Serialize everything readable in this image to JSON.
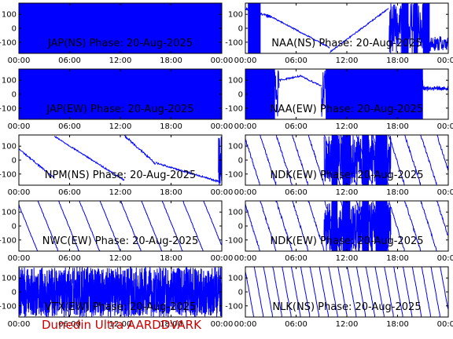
{
  "footer": {
    "text": "Dunedin Ultra AARDDVARK"
  },
  "colors": {
    "trace": "#0000ff",
    "footer": "#cc0000",
    "axes": "#000000"
  },
  "chart_data": [
    {
      "type": "line",
      "title": "JAP(NS) Phase: 20-Aug-2025",
      "station": "JAP",
      "component": "NS",
      "pattern": "dense",
      "xlim": [
        0,
        24
      ],
      "ylim": [
        -180,
        180
      ],
      "xticks": [
        "00:00",
        "06:00",
        "12:00",
        "18:00",
        "00:00"
      ],
      "yticks": [
        "100",
        "0",
        "-100"
      ],
      "description_series": []
    },
    {
      "type": "line",
      "title": "NAA(NS) Phase: 20-Aug-2025",
      "station": "NAA",
      "component": "NS",
      "pattern": "naa_ns",
      "xlim": [
        0,
        24
      ],
      "ylim": [
        -180,
        180
      ],
      "xticks": [
        "00:00",
        "06:00",
        "12:00",
        "18:00",
        "00:00"
      ],
      "yticks": [
        "100",
        "0",
        "-100"
      ],
      "description_series": []
    },
    {
      "type": "line",
      "title": "JAP(EW) Phase: 20-Aug-2025",
      "station": "JAP",
      "component": "EW",
      "pattern": "dense",
      "xlim": [
        0,
        24
      ],
      "ylim": [
        -180,
        180
      ],
      "xticks": [
        "00:00",
        "06:00",
        "12:00",
        "18:00",
        "00:00"
      ],
      "yticks": [
        "100",
        "0",
        "-100"
      ],
      "description_series": []
    },
    {
      "type": "line",
      "title": "NAA(EW) Phase: 20-Aug-2025",
      "station": "NAA",
      "component": "EW",
      "pattern": "naa_ew",
      "xlim": [
        0,
        24
      ],
      "ylim": [
        -180,
        180
      ],
      "xticks": [
        "00:00",
        "06:00",
        "12:00",
        "18:00",
        "00:00"
      ],
      "yticks": [
        "100",
        "0",
        "-100"
      ],
      "description_series": []
    },
    {
      "type": "line",
      "title": "NPM(NS) Phase: 20-Aug-2025",
      "station": "NPM",
      "component": "NS",
      "pattern": "npm",
      "xlim": [
        0,
        24
      ],
      "ylim": [
        -180,
        180
      ],
      "xticks": [
        "00:00",
        "06:00",
        "12:00",
        "18:00",
        "00:00"
      ],
      "yticks": [
        "100",
        "0",
        "-100"
      ],
      "description_series": []
    },
    {
      "type": "line",
      "title": "NDK(EW) Phase: 20-Aug-2025",
      "station": "NDK",
      "component": "EW",
      "pattern": "ndk",
      "xlim": [
        0,
        24
      ],
      "ylim": [
        -180,
        180
      ],
      "xticks": [
        "00:00",
        "06:00",
        "12:00",
        "18:00",
        "00:00"
      ],
      "yticks": [
        "100",
        "0",
        "-100"
      ],
      "description_series": []
    },
    {
      "type": "line",
      "title": "NWC(EW) Phase: 20-Aug-2025",
      "station": "NWC",
      "component": "EW",
      "pattern": "nwc",
      "xlim": [
        0,
        24
      ],
      "ylim": [
        -180,
        180
      ],
      "xticks": [
        "00:00",
        "06:00",
        "12:00",
        "18:00",
        "00:00"
      ],
      "yticks": [
        "100",
        "0",
        "-100"
      ],
      "description_series": []
    },
    {
      "type": "line",
      "title": "NDK(EW) Phase: 20-Aug-2025",
      "station": "NDK",
      "component": "EW",
      "pattern": "ndk",
      "xlim": [
        0,
        24
      ],
      "ylim": [
        -180,
        180
      ],
      "xticks": [
        "00:00",
        "06:00",
        "12:00",
        "18:00",
        "00:00"
      ],
      "yticks": [
        "100",
        "0",
        "-100"
      ],
      "description_series": []
    },
    {
      "type": "line",
      "title": "VTX(EW) Phase: 20-Aug-2025",
      "station": "VTX",
      "component": "EW",
      "pattern": "vtx",
      "xlim": [
        0,
        24
      ],
      "ylim": [
        -180,
        180
      ],
      "xticks": [
        "00:00",
        "06:00",
        "12:00",
        "18:00",
        "00:00"
      ],
      "yticks": [
        "100",
        "0",
        "-100"
      ],
      "description_series": []
    },
    {
      "type": "line",
      "title": "NLK(NS) Phase: 20-Aug-2025",
      "station": "NLK",
      "component": "NS",
      "pattern": "nlk",
      "xlim": [
        0,
        24
      ],
      "ylim": [
        -180,
        180
      ],
      "xticks": [
        "00:00",
        "06:00",
        "12:00",
        "18:00",
        "00:00"
      ],
      "yticks": [
        "100",
        "0",
        "-100"
      ],
      "description_series": []
    }
  ]
}
